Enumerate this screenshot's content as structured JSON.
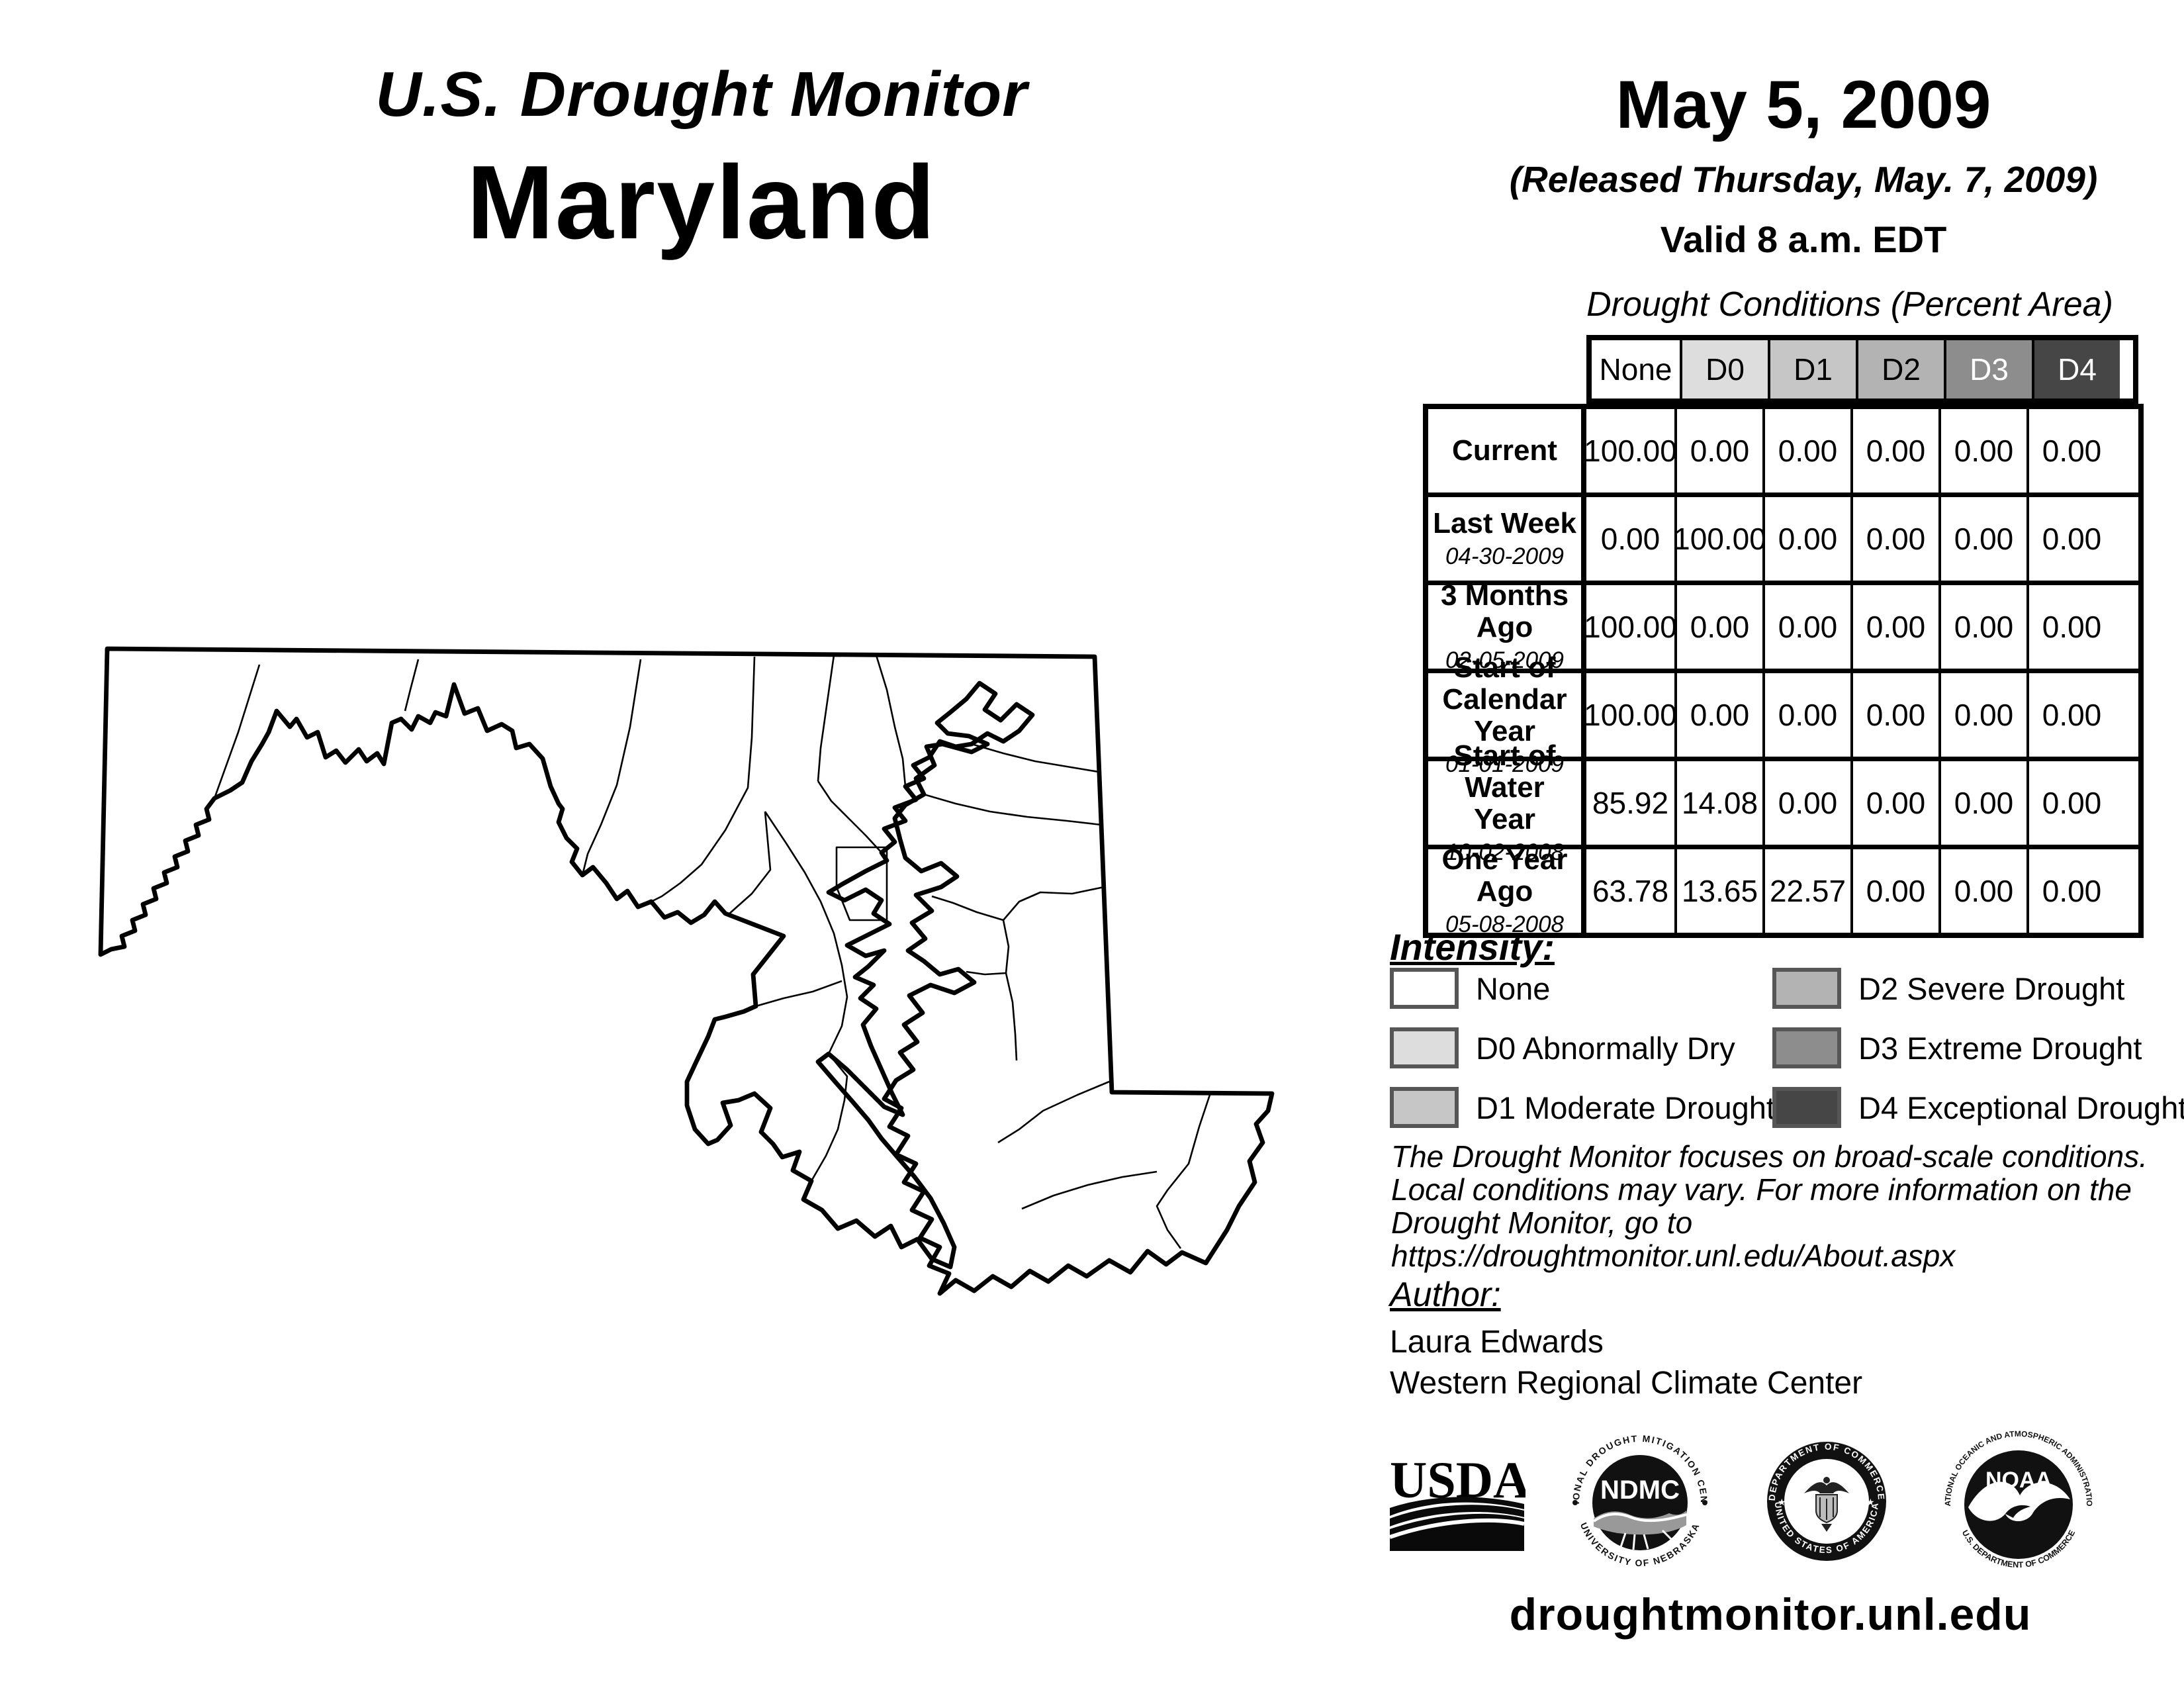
{
  "header": {
    "title": "U.S. Drought Monitor",
    "region": "Maryland"
  },
  "date_block": {
    "date": "May 5, 2009",
    "released": "(Released Thursday, May. 7, 2009)",
    "valid": "Valid 8 a.m. EDT"
  },
  "conditions_table": {
    "title": "Drought Conditions (Percent Area)",
    "columns": [
      "None",
      "D0",
      "D1",
      "D2",
      "D3",
      "D4"
    ],
    "column_colors": [
      "#ffffff",
      "#dddddd",
      "#c6c6c6",
      "#b3b3b3",
      "#8d8d8d",
      "#464646"
    ],
    "column_text_colors": [
      "#000000",
      "#000000",
      "#000000",
      "#000000",
      "#ffffff",
      "#ffffff"
    ],
    "rows": [
      {
        "label": "Current",
        "date": "",
        "values": [
          "100.00",
          "0.00",
          "0.00",
          "0.00",
          "0.00",
          "0.00"
        ]
      },
      {
        "label": "Last Week",
        "date": "04-30-2009",
        "values": [
          "0.00",
          "100.00",
          "0.00",
          "0.00",
          "0.00",
          "0.00"
        ]
      },
      {
        "label": "3 Months Ago",
        "date": "02-05-2009",
        "values": [
          "100.00",
          "0.00",
          "0.00",
          "0.00",
          "0.00",
          "0.00"
        ]
      },
      {
        "label": "Start of Calendar Year",
        "date": "01-01-2009",
        "values": [
          "100.00",
          "0.00",
          "0.00",
          "0.00",
          "0.00",
          "0.00"
        ]
      },
      {
        "label": "Start of Water Year",
        "date": "10-02-2008",
        "values": [
          "85.92",
          "14.08",
          "0.00",
          "0.00",
          "0.00",
          "0.00"
        ]
      },
      {
        "label": "One Year Ago",
        "date": "05-08-2008",
        "values": [
          "63.78",
          "13.65",
          "22.57",
          "0.00",
          "0.00",
          "0.00"
        ]
      }
    ]
  },
  "intensity_legend": {
    "title": "Intensity:",
    "items": [
      {
        "label": "None",
        "color": "#ffffff"
      },
      {
        "label": "D0 Abnormally Dry",
        "color": "#dddddd"
      },
      {
        "label": "D1 Moderate Drought",
        "color": "#c6c6c6"
      },
      {
        "label": "D2 Severe Drought",
        "color": "#b3b3b3"
      },
      {
        "label": "D3 Extreme Drought",
        "color": "#8d8d8d"
      },
      {
        "label": "D4 Exceptional Drought",
        "color": "#464646"
      }
    ]
  },
  "disclaimer": {
    "lines": [
      "The Drought Monitor focuses on broad-scale conditions.",
      "Local conditions may vary. For more information on the",
      "Drought Monitor, go to https://droughtmonitor.unl.edu/About.aspx"
    ]
  },
  "author": {
    "title": "Author:",
    "name": "Laura Edwards",
    "org": "Western Regional Climate Center"
  },
  "logos": {
    "usda": {
      "text": "USDA"
    },
    "ndmc": {
      "center": "NDMC",
      "arc_top": "NATIONAL DROUGHT MITIGATION CENTER",
      "arc_bottom": "UNIVERSITY OF NEBRASKA"
    },
    "doc": {
      "arc_top": "DEPARTMENT OF COMMERCE",
      "arc_bottom": "UNITED STATES OF AMERICA"
    },
    "noaa": {
      "center": "NOAA",
      "arc_top": "NATIONAL OCEANIC AND ATMOSPHERIC ADMINISTRATION",
      "arc_bottom": "U.S. DEPARTMENT OF COMMERCE"
    }
  },
  "footer": {
    "url": "droughtmonitor.unl.edu"
  },
  "map": {
    "region": "Maryland",
    "fill": "#ffffff",
    "state_border_color": "#000000"
  }
}
